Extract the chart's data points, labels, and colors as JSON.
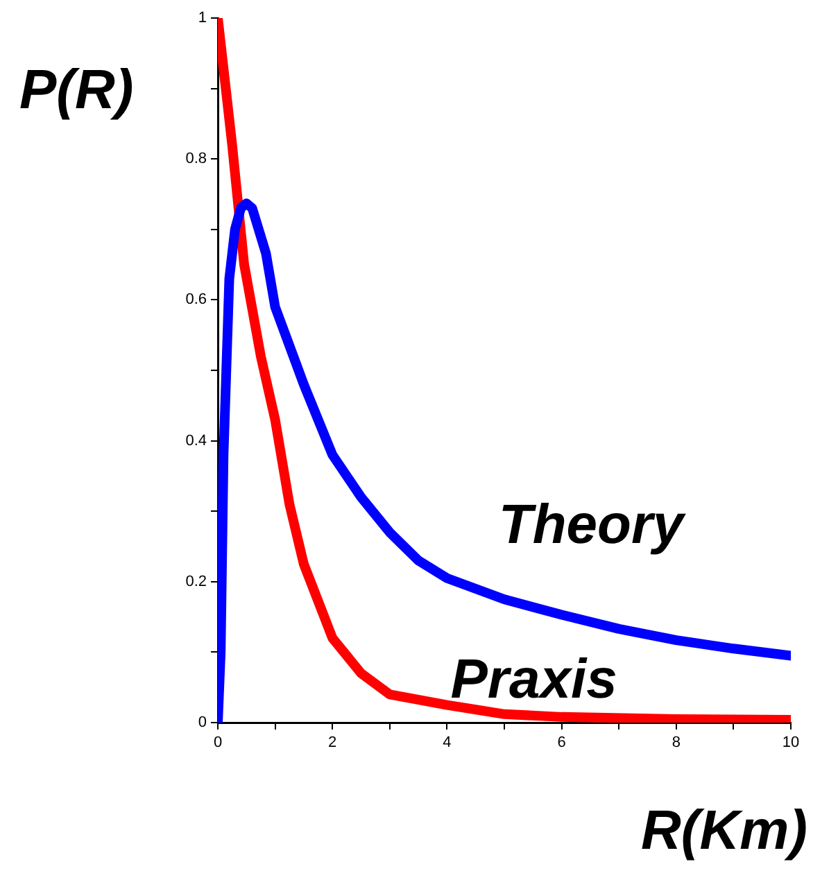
{
  "chart_data": {
    "type": "line",
    "xlabel": "R(Km)",
    "ylabel": "P(R)",
    "xlim": [
      0,
      10
    ],
    "xticks": [
      0,
      {
        "value": 1,
        "label": null
      },
      2,
      {
        "value": 3,
        "label": null
      },
      4,
      {
        "value": 5,
        "label": null
      },
      6,
      {
        "value": 7,
        "label": null
      },
      8,
      {
        "value": 9,
        "label": null
      },
      10
    ],
    "ylim": [
      0,
      1
    ],
    "yticks": [
      0,
      {
        "value": 0.1,
        "label": null
      },
      0.2,
      {
        "value": 0.3,
        "label": null
      },
      0.4,
      {
        "value": 0.5,
        "label": null
      },
      0.6,
      {
        "value": 0.7,
        "label": null
      },
      0.8,
      {
        "value": 0.9,
        "label": null
      },
      1
    ],
    "grid": false,
    "legend": false,
    "marker": "none",
    "line_style": "solid",
    "series": [
      {
        "name": "Theory",
        "color": "#0000ff",
        "x": [
          0,
          0.05,
          0.1,
          0.2,
          0.3,
          0.4,
          0.5,
          0.6,
          0.84,
          1,
          1.5,
          2,
          2.5,
          3,
          3.5,
          4,
          5,
          6,
          7,
          8,
          9,
          10
        ],
        "values": [
          0,
          0.1,
          0.38,
          0.63,
          0.7,
          0.73,
          0.737,
          0.73,
          0.666,
          0.59,
          0.48,
          0.38,
          0.32,
          0.27,
          0.23,
          0.205,
          0.175,
          0.153,
          0.133,
          0.117,
          0.105,
          0.095
        ]
      },
      {
        "name": "Praxis",
        "color": "#ff0000",
        "x": [
          0,
          0.25,
          0.46,
          0.75,
          1,
          1.25,
          1.5,
          2,
          2.5,
          3,
          4,
          5,
          6,
          8,
          10
        ],
        "values": [
          1,
          0.82,
          0.65,
          0.52,
          0.43,
          0.31,
          0.225,
          0.12,
          0.07,
          0.04,
          0.025,
          0.012,
          0.008,
          0.005,
          0.004
        ]
      }
    ]
  }
}
